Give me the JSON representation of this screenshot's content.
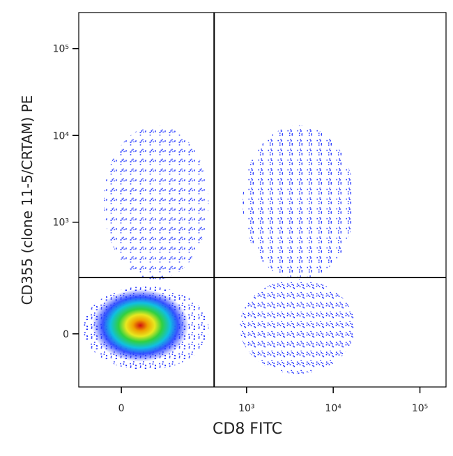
{
  "chart_data": {
    "type": "flow-density",
    "x_label": "CD8 FITC",
    "y_label": "CD355 (clone 11-5/CRTAM) PE",
    "xscale": "asinh",
    "yscale": "asinh",
    "xlim": [
      -100,
      200000
    ],
    "ylim": [
      -200,
      260000
    ],
    "xticks": [
      0,
      {
        "value": 1000,
        "label": "10³"
      },
      {
        "value": 10000,
        "label": "10⁴"
      },
      {
        "value": 100000,
        "label": "10⁵"
      }
    ],
    "yticks": [
      0,
      {
        "value": 1000,
        "label": "10³"
      },
      {
        "value": 10000,
        "label": "10⁴"
      },
      {
        "value": 100000,
        "label": "10⁵"
      }
    ],
    "gates": {
      "x": 420,
      "y": 220
    },
    "populations": [
      {
        "x": [
          -86,
          362
        ],
        "y": [
          -116,
          168
        ],
        "color": "#1f2fff",
        "heat": true
      },
      {
        "x": [
          835,
          17700
        ],
        "y": [
          -132,
          207
        ],
        "color": "#1f2fff"
      },
      {
        "x": [
          900,
          17700
        ],
        "y": [
          207,
          13000
        ],
        "color": "#3344ff"
      },
      {
        "x": [
          -35,
          362
        ],
        "y": [
          207,
          13000
        ],
        "color": "#4455ff"
      }
    ]
  }
}
